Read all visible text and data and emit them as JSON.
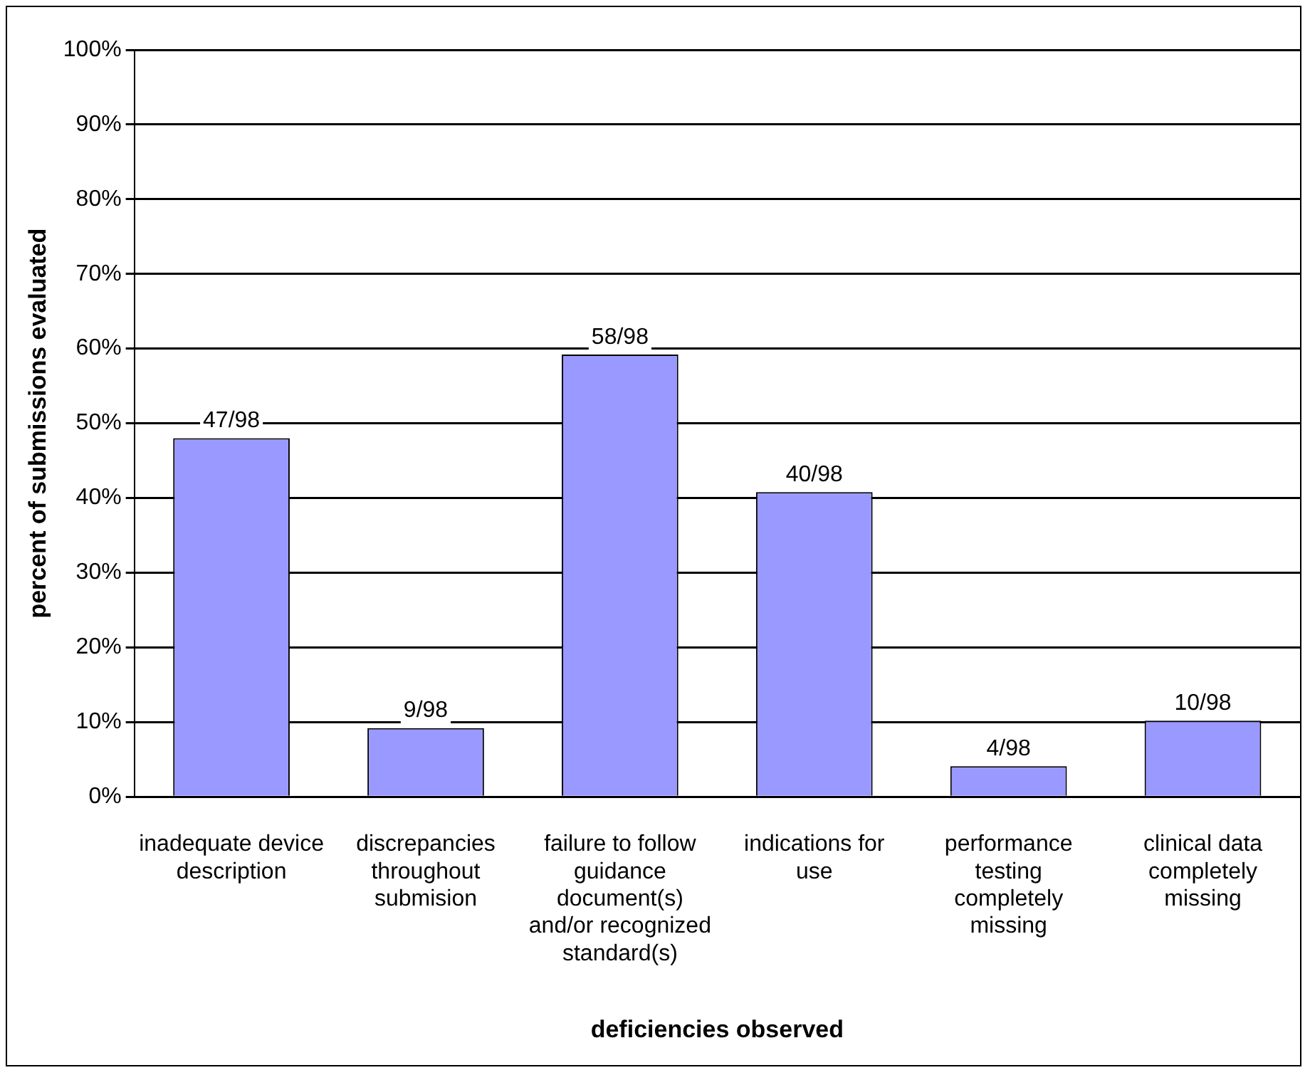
{
  "chart_data": {
    "type": "bar",
    "xlabel": "deficiencies observed",
    "ylabel": "percent of submissions evaluated",
    "categories": [
      "inadequate device description",
      "discrepancies throughout submision",
      "failure to follow guidance document(s) and/or recognized standard(s)",
      "indications for use",
      "performance testing completely missing",
      "clinical data completely missing"
    ],
    "values": [
      48.0,
      9.2,
      59.2,
      40.8,
      4.1,
      10.2
    ],
    "value_labels": [
      "47/98",
      "9/98",
      "58/98",
      "40/98",
      "4/98",
      "10/98"
    ],
    "color": "#9999ff",
    "ylim": [
      0,
      100
    ],
    "yticks": [
      {
        "value": 0,
        "label": "0%"
      },
      {
        "value": 10,
        "label": "10%"
      },
      {
        "value": 20,
        "label": "20%"
      },
      {
        "value": 30,
        "label": "30%"
      },
      {
        "value": 40,
        "label": "40%"
      },
      {
        "value": 50,
        "label": "50%"
      },
      {
        "value": 60,
        "label": "60%"
      },
      {
        "value": 70,
        "label": "70%"
      },
      {
        "value": 80,
        "label": "80%"
      },
      {
        "value": 90,
        "label": "90%"
      },
      {
        "value": 100,
        "label": "100%"
      }
    ],
    "grid": "y",
    "legend": false
  }
}
